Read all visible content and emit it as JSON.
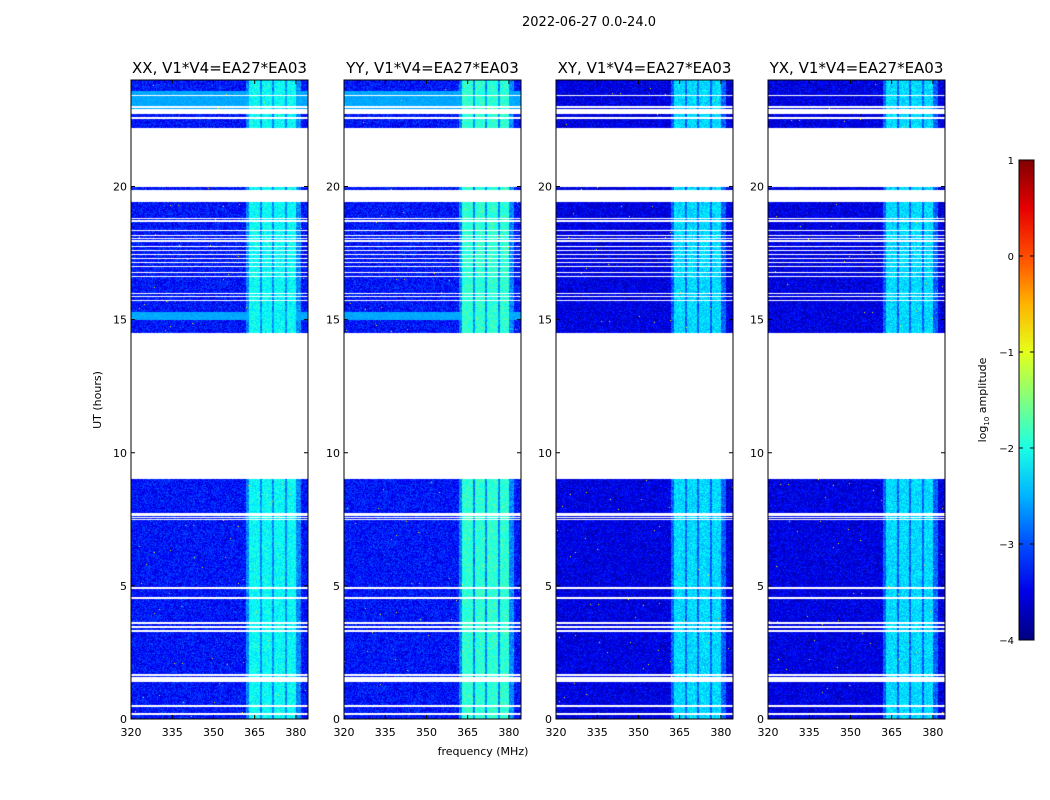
{
  "chart_data": {
    "type": "heatmap",
    "title": "2022-06-27 0.0-24.0",
    "xlabel": "frequency (MHz)",
    "ylabel": "UT (hours)",
    "xlim": [
      320,
      384.4
    ],
    "ylim": [
      0,
      24
    ],
    "xticks": [
      320,
      335,
      350,
      365,
      380
    ],
    "yticks": [
      0,
      5,
      10,
      15,
      20
    ],
    "panels": [
      {
        "title": "XX, V1*V4=EA27*EA03",
        "background": -3.3,
        "band_level": -2.1,
        "cyan_strip": true
      },
      {
        "title": "YY, V1*V4=EA27*EA03",
        "background": -3.3,
        "band_level": -1.9,
        "cyan_strip": true
      },
      {
        "title": "XY, V1*V4=EA27*EA03",
        "background": -3.5,
        "band_level": -2.3,
        "cyan_strip": false
      },
      {
        "title": "YX, V1*V4=EA27*EA03",
        "background": -3.5,
        "band_level": -2.3,
        "cyan_strip": false
      }
    ],
    "bright_band_channels_mhz": [
      [
        363,
        366.8
      ],
      [
        367.6,
        371.2
      ],
      [
        372.2,
        376.2
      ],
      [
        376.8,
        380.2
      ]
    ],
    "data_segments_hours": [
      [
        0,
        9.0
      ],
      [
        14.48,
        16.25
      ],
      [
        16.25,
        19.4
      ],
      [
        19.85,
        20.0
      ],
      [
        22.18,
        24.0
      ]
    ],
    "flagged_lines_hours": [
      0.19,
      0.49,
      1.43,
      1.5,
      1.57,
      1.65,
      3.3,
      3.45,
      3.6,
      4.55,
      4.92,
      7.5,
      7.58,
      7.66,
      7.73,
      15.72,
      15.87,
      15.98,
      16.62,
      16.77,
      17.0,
      17.15,
      17.3,
      17.45,
      17.6,
      17.75,
      17.95,
      18.05,
      18.15,
      18.35,
      18.7,
      18.8,
      22.57,
      22.76,
      22.83,
      22.9,
      22.98,
      23.43
    ],
    "colorbar": {
      "label": "log10 amplitude",
      "label_main": "log",
      "label_sub": "10",
      "label_rest": " amplitude",
      "range": [
        -4,
        1
      ],
      "ticks": [
        "1",
        "0",
        "−1",
        "−2",
        "−3",
        "−4"
      ],
      "colormap": "jet"
    }
  }
}
